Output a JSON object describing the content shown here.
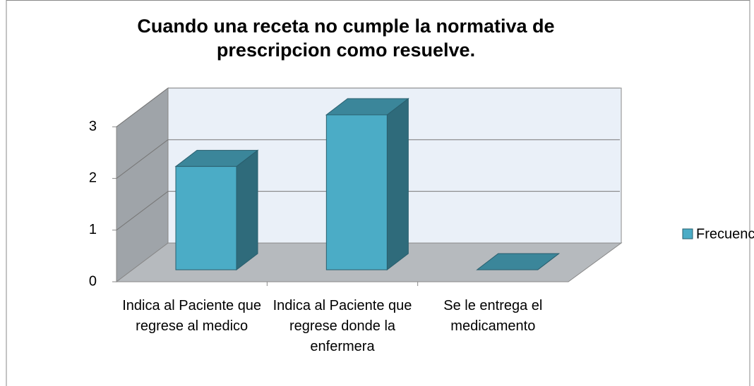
{
  "chart_data": {
    "type": "bar3d",
    "title": "Cuando una receta no cumple la normativa de prescripcion como resuelve.",
    "categories": [
      "Indica al Paciente que regrese al medico",
      "Indica al Paciente que regrese donde la enfermera",
      "Se le entrega el medicamento"
    ],
    "series": [
      {
        "name": "Frecuencia",
        "color": "#4bacc6",
        "values": [
          2,
          3,
          0
        ]
      }
    ],
    "ylim": [
      0,
      3
    ],
    "yticks": [
      0,
      1,
      2,
      3
    ],
    "grid": true,
    "legend": "right"
  }
}
